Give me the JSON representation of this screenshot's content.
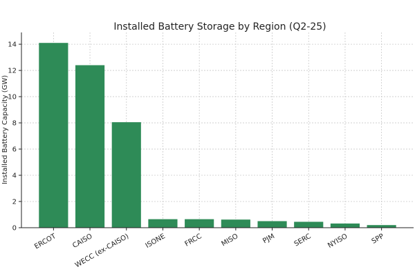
{
  "chart_data": {
    "type": "bar",
    "title": "Installed Battery Storage by Region (Q2-25)",
    "y_label": "Installed Battery Capacity (GW)",
    "categories": [
      "ERCOT",
      "CAISO",
      "WECC (ex-CAISO)",
      "ISONE",
      "FRCC",
      "MISO",
      "PJM",
      "SERC",
      "NYISO",
      "SPP"
    ],
    "values": [
      14.1,
      12.4,
      8.05,
      0.65,
      0.65,
      0.62,
      0.5,
      0.45,
      0.32,
      0.2
    ],
    "color": "#2e8b57",
    "ylim": [
      0,
      14.9
    ],
    "yticks": [
      0,
      2,
      4,
      6,
      8,
      10,
      12,
      14
    ],
    "grid": true
  }
}
